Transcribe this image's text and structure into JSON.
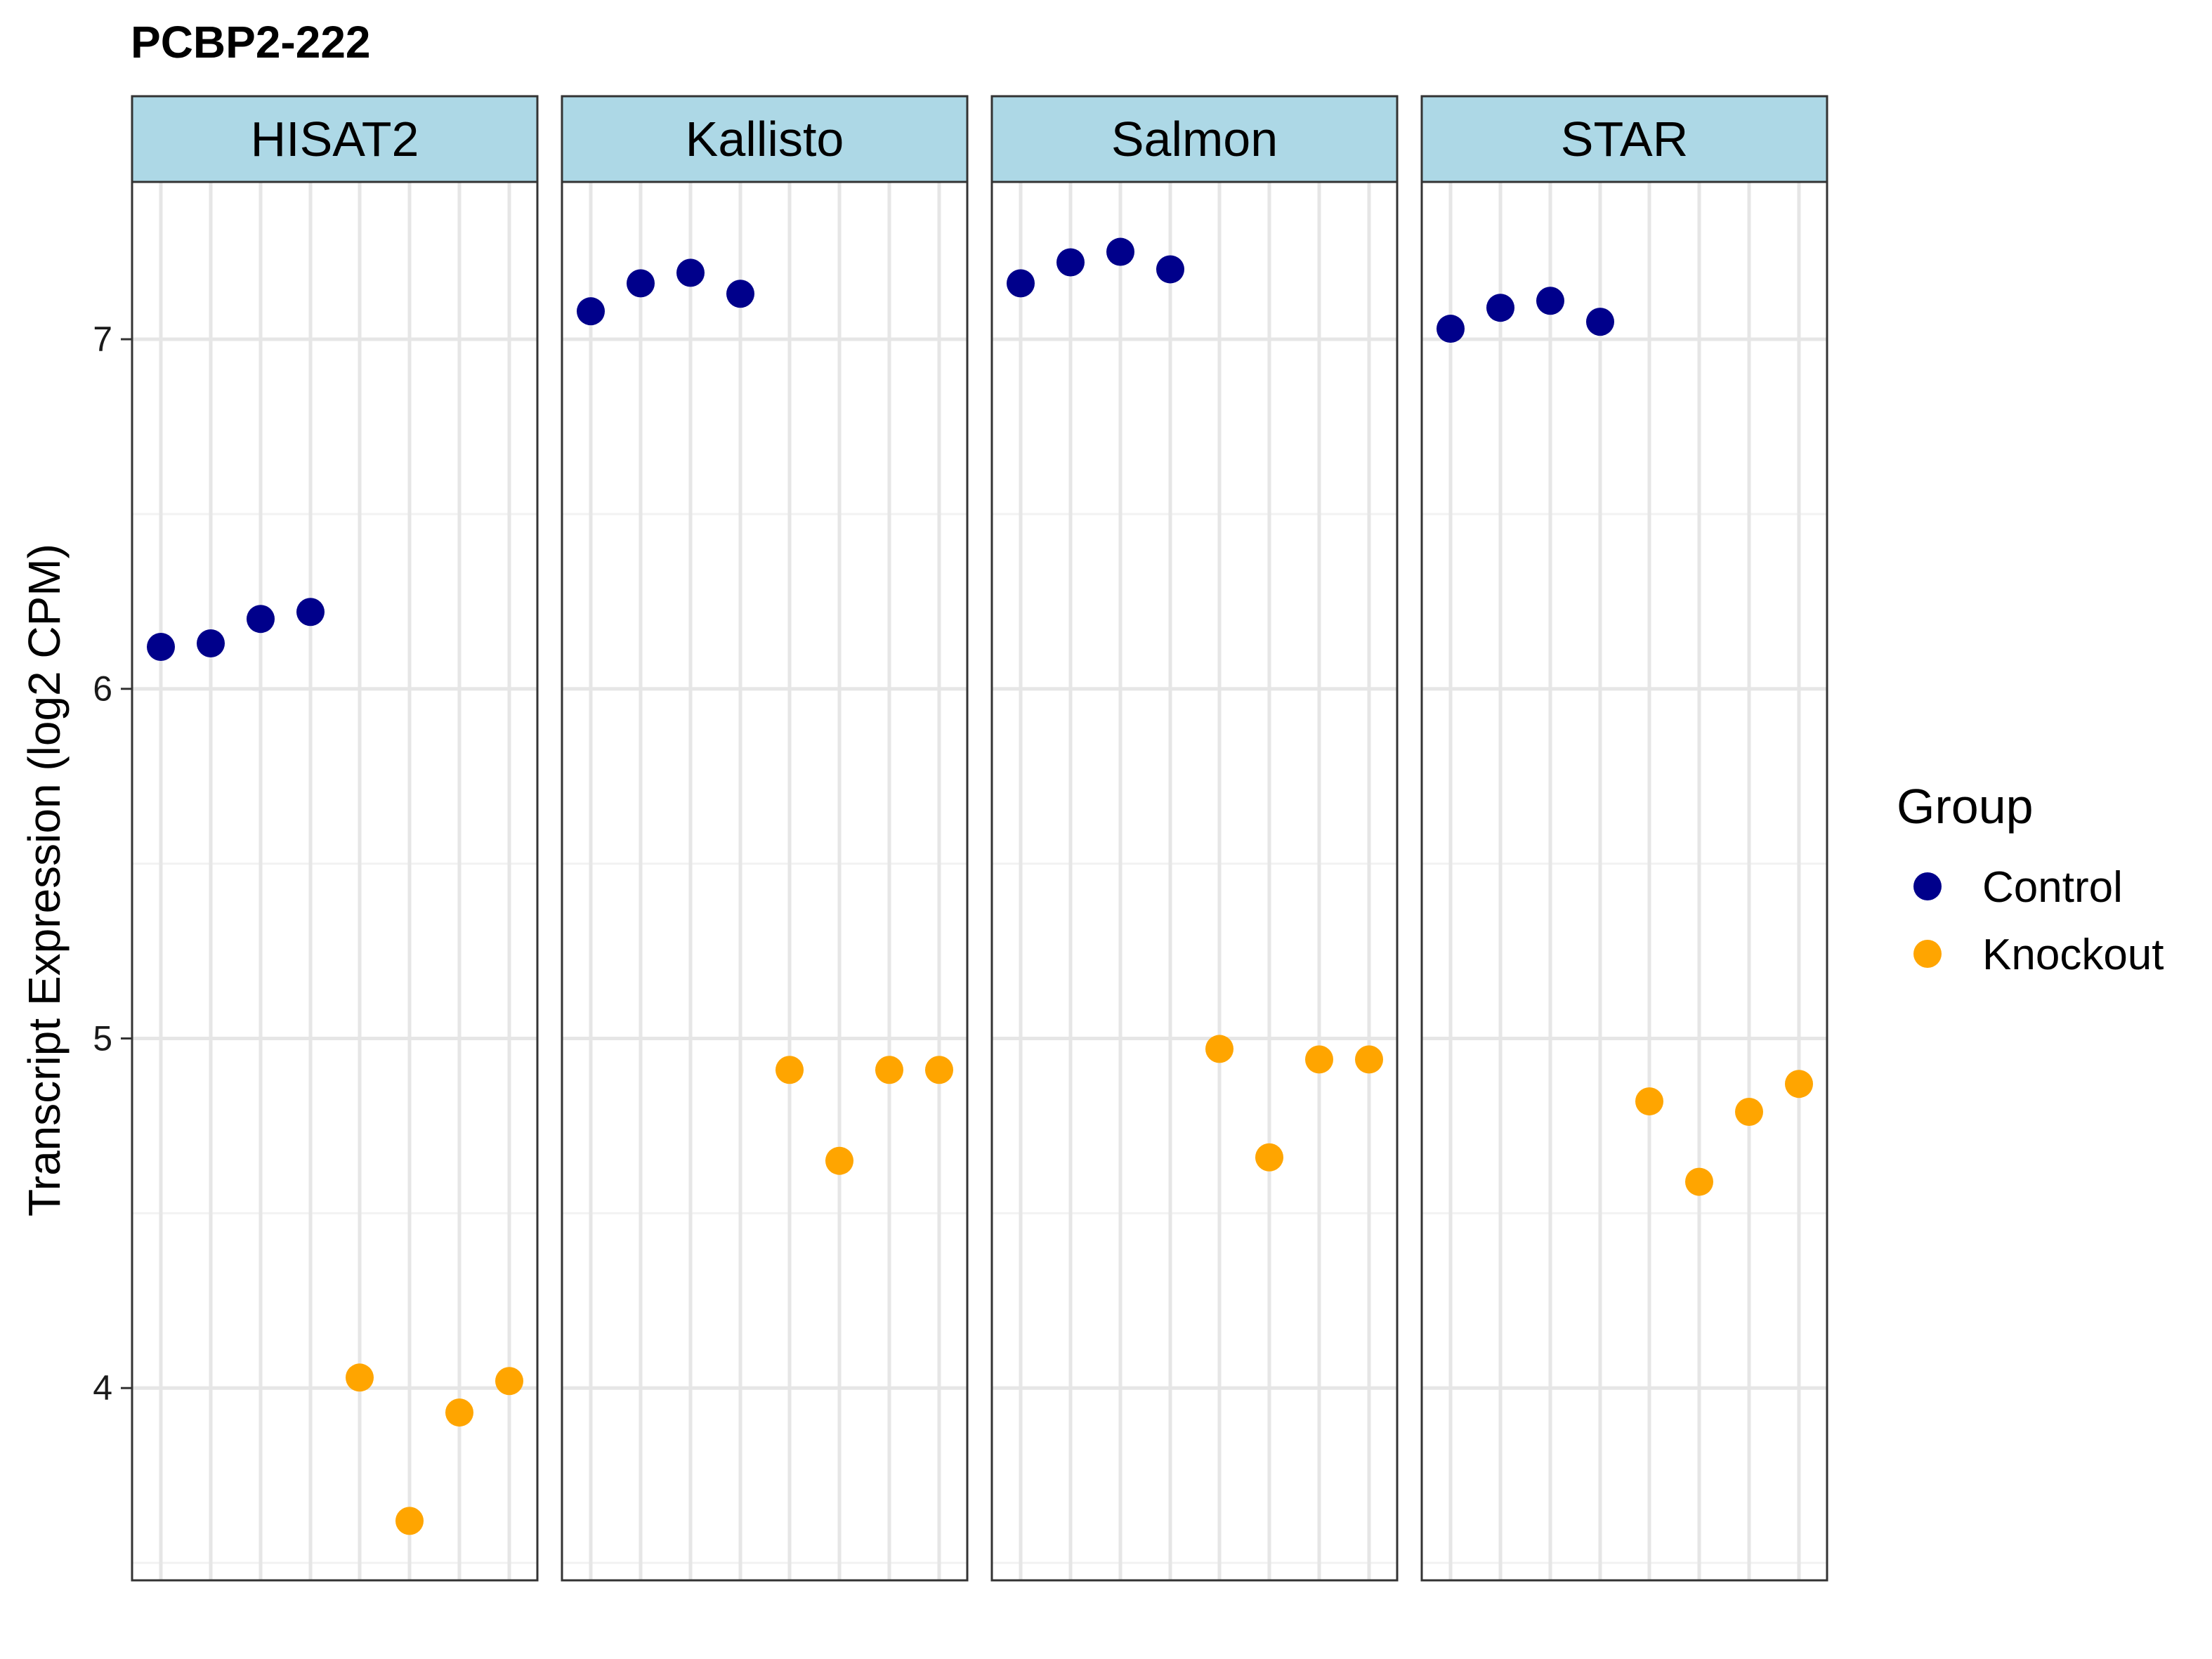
{
  "chart_data": {
    "type": "scatter",
    "title": "PCBP2-222",
    "ylabel": "Transcript Expression (log2 CPM)",
    "xlabel": "",
    "ylim": [
      3.45,
      7.45
    ],
    "yticks": [
      4,
      5,
      6,
      7
    ],
    "grid": true,
    "legend": {
      "title": "Group",
      "placement": "right",
      "entries": [
        {
          "name": "Control",
          "color": "#00008B"
        },
        {
          "name": "Knockout",
          "color": "#FFA500"
        }
      ]
    },
    "facets": [
      {
        "label": "HISAT2",
        "points": [
          {
            "sample": 1,
            "group": "Control",
            "y": 6.12
          },
          {
            "sample": 2,
            "group": "Control",
            "y": 6.13
          },
          {
            "sample": 3,
            "group": "Control",
            "y": 6.2
          },
          {
            "sample": 4,
            "group": "Control",
            "y": 6.22
          },
          {
            "sample": 5,
            "group": "Knockout",
            "y": 4.03
          },
          {
            "sample": 6,
            "group": "Knockout",
            "y": 3.62
          },
          {
            "sample": 7,
            "group": "Knockout",
            "y": 3.93
          },
          {
            "sample": 8,
            "group": "Knockout",
            "y": 4.02
          }
        ]
      },
      {
        "label": "Kallisto",
        "points": [
          {
            "sample": 1,
            "group": "Control",
            "y": 7.08
          },
          {
            "sample": 2,
            "group": "Control",
            "y": 7.16
          },
          {
            "sample": 3,
            "group": "Control",
            "y": 7.19
          },
          {
            "sample": 4,
            "group": "Control",
            "y": 7.13
          },
          {
            "sample": 5,
            "group": "Knockout",
            "y": 4.91
          },
          {
            "sample": 6,
            "group": "Knockout",
            "y": 4.65
          },
          {
            "sample": 7,
            "group": "Knockout",
            "y": 4.91
          },
          {
            "sample": 8,
            "group": "Knockout",
            "y": 4.91
          }
        ]
      },
      {
        "label": "Salmon",
        "points": [
          {
            "sample": 1,
            "group": "Control",
            "y": 7.16
          },
          {
            "sample": 2,
            "group": "Control",
            "y": 7.22
          },
          {
            "sample": 3,
            "group": "Control",
            "y": 7.25
          },
          {
            "sample": 4,
            "group": "Control",
            "y": 7.2
          },
          {
            "sample": 5,
            "group": "Knockout",
            "y": 4.97
          },
          {
            "sample": 6,
            "group": "Knockout",
            "y": 4.66
          },
          {
            "sample": 7,
            "group": "Knockout",
            "y": 4.94
          },
          {
            "sample": 8,
            "group": "Knockout",
            "y": 4.94
          }
        ]
      },
      {
        "label": "STAR",
        "points": [
          {
            "sample": 1,
            "group": "Control",
            "y": 7.03
          },
          {
            "sample": 2,
            "group": "Control",
            "y": 7.09
          },
          {
            "sample": 3,
            "group": "Control",
            "y": 7.11
          },
          {
            "sample": 4,
            "group": "Control",
            "y": 7.05
          },
          {
            "sample": 5,
            "group": "Knockout",
            "y": 4.82
          },
          {
            "sample": 6,
            "group": "Knockout",
            "y": 4.59
          },
          {
            "sample": 7,
            "group": "Knockout",
            "y": 4.79
          },
          {
            "sample": 8,
            "group": "Knockout",
            "y": 4.87
          }
        ]
      }
    ]
  }
}
